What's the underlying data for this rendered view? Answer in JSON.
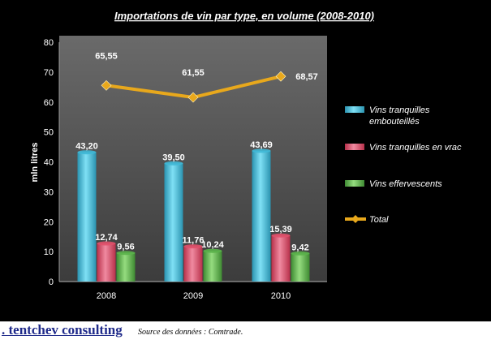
{
  "chart_data": {
    "type": "bar",
    "title": "Importations de vin par type, en volume (2008-2010)",
    "ylabel": "mln litres",
    "xlabel": "",
    "ylim": [
      0,
      80
    ],
    "yticks": [
      "0",
      "10",
      "20",
      "30",
      "40",
      "50",
      "60",
      "70",
      "80"
    ],
    "categories": [
      "2008",
      "2009",
      "2010"
    ],
    "series": [
      {
        "name": "Vins tranquilles embouteillés",
        "legend_lines": [
          "Vins tranquilles",
          "embouteillés"
        ],
        "kind": "bar",
        "color": "#3fb8d6",
        "values": [
          43.2,
          39.5,
          43.69
        ],
        "labels": [
          "43,20",
          "39,50",
          "43,69"
        ]
      },
      {
        "name": "Vins tranquilles  en vrac",
        "legend_lines": [
          "Vins tranquilles  en vrac"
        ],
        "kind": "bar",
        "color": "#e0506a",
        "values": [
          12.74,
          11.76,
          15.39
        ],
        "labels": [
          "12,74",
          "11,76",
          "15,39"
        ]
      },
      {
        "name": "Vins effervescents",
        "legend_lines": [
          "Vins effervescents"
        ],
        "kind": "bar",
        "color": "#5ab34a",
        "values": [
          9.56,
          10.24,
          9.42
        ],
        "labels": [
          "9,56",
          "10,24",
          "9,42"
        ]
      },
      {
        "name": "Total",
        "legend_lines": [
          "Total"
        ],
        "kind": "line",
        "color": "#e8a81c",
        "values": [
          65.55,
          61.55,
          68.57
        ],
        "labels": [
          "65,55",
          "61,55",
          "68,57"
        ]
      }
    ],
    "legend_position": "right",
    "grid": false
  },
  "footer": {
    "brand": ". tentchev consulting",
    "source": "Source des données : Comtrade."
  }
}
